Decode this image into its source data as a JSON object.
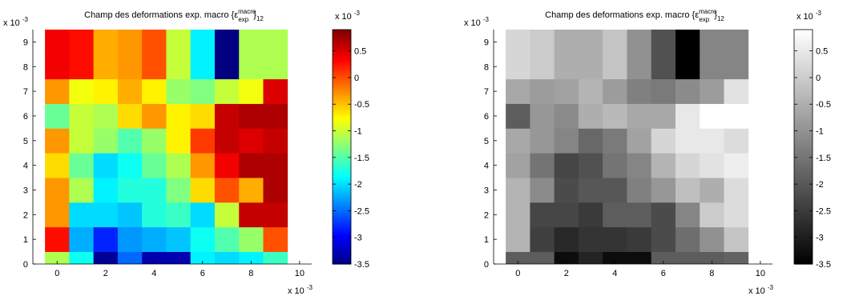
{
  "chart_data": [
    {
      "type": "heatmap",
      "colormap": "jet",
      "title_prefix": "Champ des deformations exp. macro",
      "title_symbol": "ε",
      "title_superscript": "macro",
      "title_subscript": "exp",
      "title_suffix": "12",
      "x_exponent_label": "x 10",
      "x_exponent_power": "-3",
      "y_exponent_label": "x 10",
      "y_exponent_power": "-3",
      "cbar_exponent_label": "x 10",
      "cbar_exponent_power": "-3",
      "xlim": [
        -1,
        10.5
      ],
      "ylim": [
        0,
        9.5
      ],
      "xticks": [
        0,
        2,
        4,
        6,
        8,
        10
      ],
      "yticks": [
        0,
        1,
        2,
        3,
        4,
        5,
        6,
        7,
        8,
        9
      ],
      "x_cells": [
        0,
        1,
        2,
        3,
        4,
        5,
        6,
        7,
        8,
        9
      ],
      "y_cells": [
        0,
        1,
        2,
        3,
        4,
        5,
        6,
        7,
        8,
        9
      ],
      "clim": [
        -3.5,
        0.9
      ],
      "cbar_ticks": [
        0.5,
        0,
        -0.5,
        -1,
        -1.5,
        -2,
        -2.5,
        -3,
        -3.5
      ],
      "z": [
        [
          -1.1,
          -1.8,
          -3.4,
          -2.5,
          -3.3,
          -3.3,
          -1.9,
          -2.0,
          -1.9,
          -1.6
        ],
        [
          0.3,
          -2.2,
          -2.8,
          -2.3,
          -2.2,
          -2.1,
          -1.8,
          -1.5,
          -1.2,
          0.0
        ],
        [
          -0.3,
          -2.0,
          -2.0,
          -2.1,
          -1.7,
          -1.6,
          -2.0,
          -1.0,
          0.6,
          0.6
        ],
        [
          -0.3,
          -1.1,
          -1.9,
          -1.7,
          -1.7,
          -1.3,
          -0.6,
          0.0,
          -0.4,
          0.7
        ],
        [
          -0.6,
          -1.4,
          -2.0,
          -1.8,
          -1.4,
          -1.1,
          -0.3,
          0.4,
          0.7,
          0.7
        ],
        [
          -0.3,
          -1.0,
          -1.2,
          -1.5,
          -1.2,
          -0.7,
          0.1,
          0.6,
          0.5,
          0.6
        ],
        [
          -1.4,
          -1.0,
          -1.1,
          -0.6,
          -0.3,
          -0.7,
          -0.6,
          0.6,
          0.7,
          0.7
        ],
        [
          -0.3,
          -0.8,
          -0.7,
          -0.4,
          -0.7,
          -1.2,
          -1.3,
          -1.0,
          -0.8,
          0.5
        ],
        [
          0.4,
          0.3,
          -0.4,
          -0.3,
          0.0,
          -1.0,
          -1.9,
          -3.5,
          -1.1,
          -1.1
        ],
        [
          0.4,
          0.3,
          -0.4,
          -0.3,
          0.0,
          -1.0,
          -1.9,
          -3.5,
          -1.1,
          -1.1
        ]
      ]
    },
    {
      "type": "heatmap",
      "colormap": "gray",
      "title_prefix": "Champ des deformations exp. macro",
      "title_symbol": "ε",
      "title_superscript": "macro",
      "title_subscript": "exp",
      "title_suffix": "12",
      "x_exponent_label": "x 10",
      "x_exponent_power": "-3",
      "y_exponent_label": "x 10",
      "y_exponent_power": "-3",
      "cbar_exponent_label": "x 10",
      "cbar_exponent_power": "-3",
      "xlim": [
        -1,
        10.5
      ],
      "ylim": [
        0,
        9.5
      ],
      "xticks": [
        0,
        2,
        4,
        6,
        8,
        10
      ],
      "yticks": [
        0,
        1,
        2,
        3,
        4,
        5,
        6,
        7,
        8,
        9
      ],
      "x_cells": [
        0,
        1,
        2,
        3,
        4,
        5,
        6,
        7,
        8,
        9
      ],
      "y_cells": [
        0,
        1,
        2,
        3,
        4,
        5,
        6,
        7,
        8,
        9
      ],
      "clim": [
        -3.5,
        0.9
      ],
      "cbar_ticks": [
        0.5,
        0,
        -0.5,
        -1,
        -1.5,
        -2,
        -2.5,
        -3,
        -3.5
      ],
      "z": [
        [
          -1.9,
          -1.9,
          -3.3,
          -2.9,
          -3.3,
          -3.3,
          -1.9,
          -1.9,
          -1.9,
          -1.8
        ],
        [
          -0.4,
          -2.4,
          -2.8,
          -2.6,
          -2.6,
          -2.5,
          -2.2,
          -1.6,
          -1.0,
          -0.1
        ],
        [
          -0.4,
          -2.3,
          -2.3,
          -2.5,
          -1.9,
          -1.9,
          -2.2,
          -1.2,
          0.0,
          0.3
        ],
        [
          -0.4,
          -1.1,
          -2.2,
          -2.0,
          -2.0,
          -1.3,
          -0.9,
          -0.2,
          -0.5,
          0.3
        ],
        [
          -0.7,
          -1.5,
          -2.3,
          -2.1,
          -1.5,
          -1.2,
          -0.4,
          0.2,
          0.4,
          0.6
        ],
        [
          -0.6,
          -0.9,
          -1.2,
          -1.7,
          -1.4,
          -0.7,
          0.2,
          0.5,
          0.5,
          0.3
        ],
        [
          -1.9,
          -0.9,
          -1.1,
          -0.5,
          -0.3,
          -0.6,
          -0.6,
          0.5,
          0.9,
          0.9
        ],
        [
          -0.6,
          -0.8,
          -0.7,
          -0.4,
          -0.8,
          -1.3,
          -1.4,
          -1.1,
          -0.8,
          0.4
        ],
        [
          0.2,
          0.0,
          -0.5,
          -0.5,
          -0.1,
          -1.0,
          -2.1,
          -3.5,
          -1.2,
          -1.2
        ],
        [
          0.2,
          0.0,
          -0.5,
          -0.5,
          -0.1,
          -1.0,
          -2.1,
          -3.5,
          -1.2,
          -1.2
        ]
      ]
    }
  ]
}
